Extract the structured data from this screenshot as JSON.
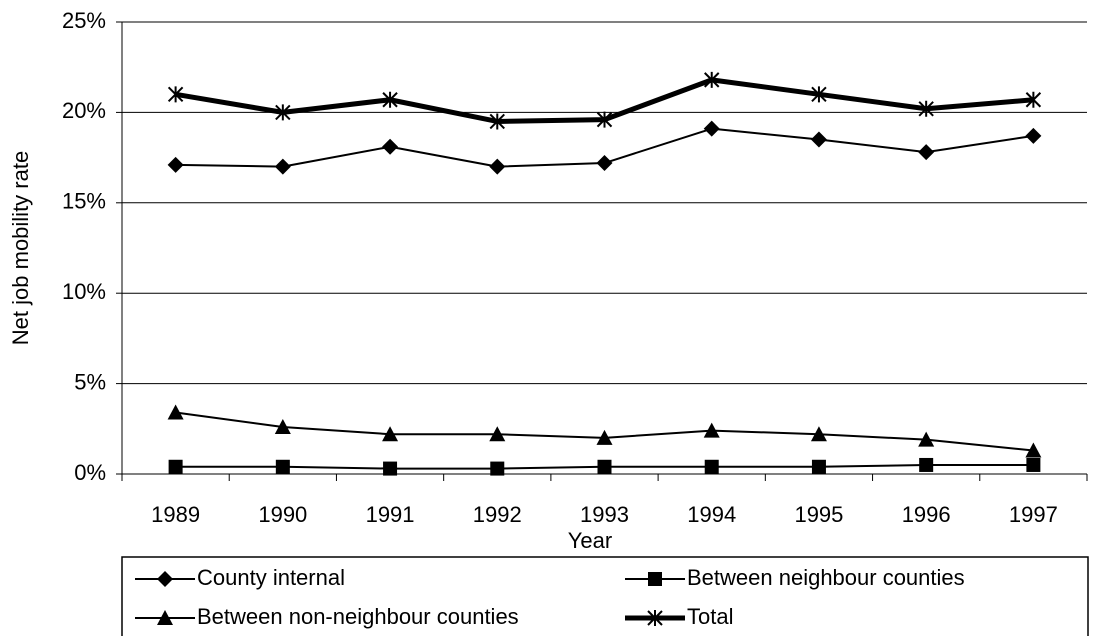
{
  "chart_data": {
    "type": "line",
    "x_label": "Year",
    "y_label": "Net job mobility rate",
    "categories": [
      "1989",
      "1990",
      "1991",
      "1992",
      "1993",
      "1994",
      "1995",
      "1996",
      "1997"
    ],
    "ylim": [
      0,
      25
    ],
    "yticks": [
      {
        "value": 0,
        "label": "0%"
      },
      {
        "value": 5,
        "label": "5%"
      },
      {
        "value": 10,
        "label": "10%"
      },
      {
        "value": 15,
        "label": "15%"
      },
      {
        "value": 20,
        "label": "20%"
      },
      {
        "value": 25,
        "label": "25%"
      }
    ],
    "grid": true,
    "legend": "bottom",
    "series": [
      {
        "name": "County internal",
        "color": "#000000",
        "marker": "diamond",
        "line_width": 2,
        "values": [
          17.1,
          17.0,
          18.1,
          17.0,
          17.2,
          19.1,
          18.5,
          17.8,
          18.7
        ]
      },
      {
        "name": "Between neighbour counties",
        "color": "#000000",
        "marker": "square",
        "line_width": 2,
        "values": [
          0.4,
          0.4,
          0.3,
          0.3,
          0.4,
          0.4,
          0.4,
          0.5,
          0.5
        ]
      },
      {
        "name": "Between non-neighbour counties",
        "color": "#000000",
        "marker": "triangle",
        "line_width": 2,
        "values": [
          3.4,
          2.6,
          2.2,
          2.2,
          2.0,
          2.4,
          2.2,
          1.9,
          1.3
        ]
      },
      {
        "name": "Total",
        "color": "#000000",
        "marker": "asterisk",
        "line_width": 5,
        "values": [
          21.0,
          20.0,
          20.7,
          19.5,
          19.6,
          21.8,
          21.0,
          20.2,
          20.7
        ]
      }
    ]
  }
}
